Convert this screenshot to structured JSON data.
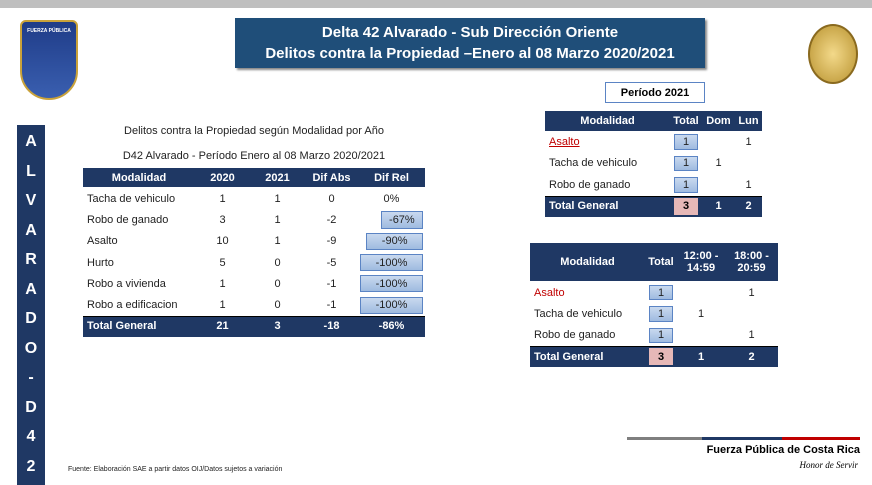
{
  "header": {
    "logo_text": "FUERZA PÚBLICA",
    "title_line1": "Delta 42 Alvarado - Sub Dirección Oriente",
    "title_line2": "Delitos contra la Propiedad –Enero al 08 Marzo 2020/2021"
  },
  "sidebar": {
    "letters": [
      "A",
      "L",
      "V",
      "A",
      "R",
      "A",
      "D",
      "O",
      "-",
      "D",
      "4",
      "2"
    ]
  },
  "table1": {
    "title_line1": "Delitos contra la Propiedad según Modalidad por Año",
    "title_line2": "D42 Alvarado -  Período Enero al 08 Marzo 2020/2021",
    "headers": [
      "Modalidad",
      "2020",
      "2021",
      "Dif Abs",
      "Dif Rel"
    ],
    "rows": [
      [
        "Tacha de vehiculo",
        1,
        1,
        0,
        "0%"
      ],
      [
        "Robo de ganado",
        3,
        1,
        -2,
        "-67%"
      ],
      [
        "Asalto",
        10,
        1,
        -9,
        "-90%"
      ],
      [
        "Hurto",
        5,
        0,
        -5,
        "-100%"
      ],
      [
        "Robo a vivienda",
        1,
        0,
        -1,
        "-100%"
      ],
      [
        "Robo a edificacion",
        1,
        0,
        -1,
        "-100%"
      ]
    ],
    "total": [
      "Total General",
      21,
      3,
      -18,
      "-86%"
    ]
  },
  "table2": {
    "period": "Período 2021",
    "headers": [
      "Modalidad",
      "Total",
      "Dom",
      "Lun"
    ],
    "rows": [
      [
        "Asalto",
        1,
        null,
        1
      ],
      [
        "Tacha de vehiculo",
        1,
        1,
        null
      ],
      [
        "Robo de ganado",
        1,
        null,
        1
      ]
    ],
    "total": [
      "Total General",
      3,
      1,
      2
    ]
  },
  "table3": {
    "headers": [
      "Modalidad",
      "Total",
      "12:00 - 14:59",
      "18:00 - 20:59"
    ],
    "rows": [
      [
        "Asalto",
        1,
        null,
        1
      ],
      [
        "Tacha de vehiculo",
        1,
        1,
        null
      ],
      [
        "Robo de ganado",
        1,
        null,
        1
      ]
    ],
    "total": [
      "Total General",
      3,
      1,
      2
    ]
  },
  "footer": {
    "source": "Fuente: Elaboración SAE a partir datos OIJ/Datos sujetos a variación",
    "brand": "Fuerza Pública de Costa Rica",
    "motto": "Honor de Servir"
  }
}
